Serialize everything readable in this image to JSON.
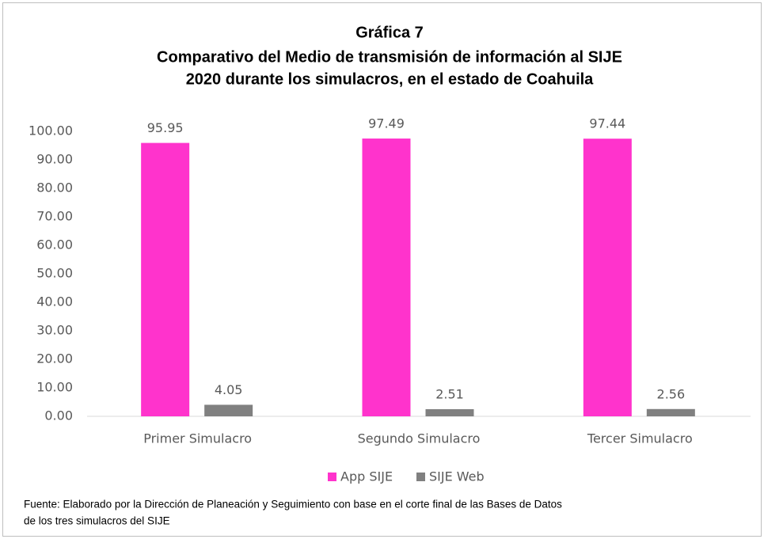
{
  "chart_data": {
    "type": "bar",
    "title": [
      "Gráfica 7",
      "Comparativo del Medio de transmisión de información al SIJE",
      "2020 durante los simulacros, en el estado de Coahuila"
    ],
    "categories": [
      "Primer Simulacro",
      "Segundo Simulacro",
      "Tercer Simulacro"
    ],
    "series": [
      {
        "name": "App SIJE",
        "color": "#ff33cc",
        "values": [
          95.95,
          97.49,
          97.44
        ]
      },
      {
        "name": "SIJE Web",
        "color": "#808080",
        "values": [
          4.05,
          2.51,
          2.56
        ]
      }
    ],
    "ylim": [
      0,
      100
    ],
    "yticks": [
      {
        "value": 0,
        "label": "0.00"
      },
      {
        "value": 10,
        "label": "10.00"
      },
      {
        "value": 20,
        "label": "20.00"
      },
      {
        "value": 30,
        "label": "30.00"
      },
      {
        "value": 40,
        "label": "40.00"
      },
      {
        "value": 50,
        "label": "50.00"
      },
      {
        "value": 60,
        "label": "60.00"
      },
      {
        "value": 70,
        "label": "70.00"
      },
      {
        "value": 80,
        "label": "80.00"
      },
      {
        "value": 90,
        "label": "90.00"
      },
      {
        "value": 100,
        "label": "100.00"
      }
    ],
    "grid": false,
    "legend": "bottom",
    "note": [
      "Fuente: Elaborado por la Dirección de Planeación y Seguimiento con base en el corte final de las Bases de Datos",
      "de los tres simulacros del SIJE"
    ]
  }
}
